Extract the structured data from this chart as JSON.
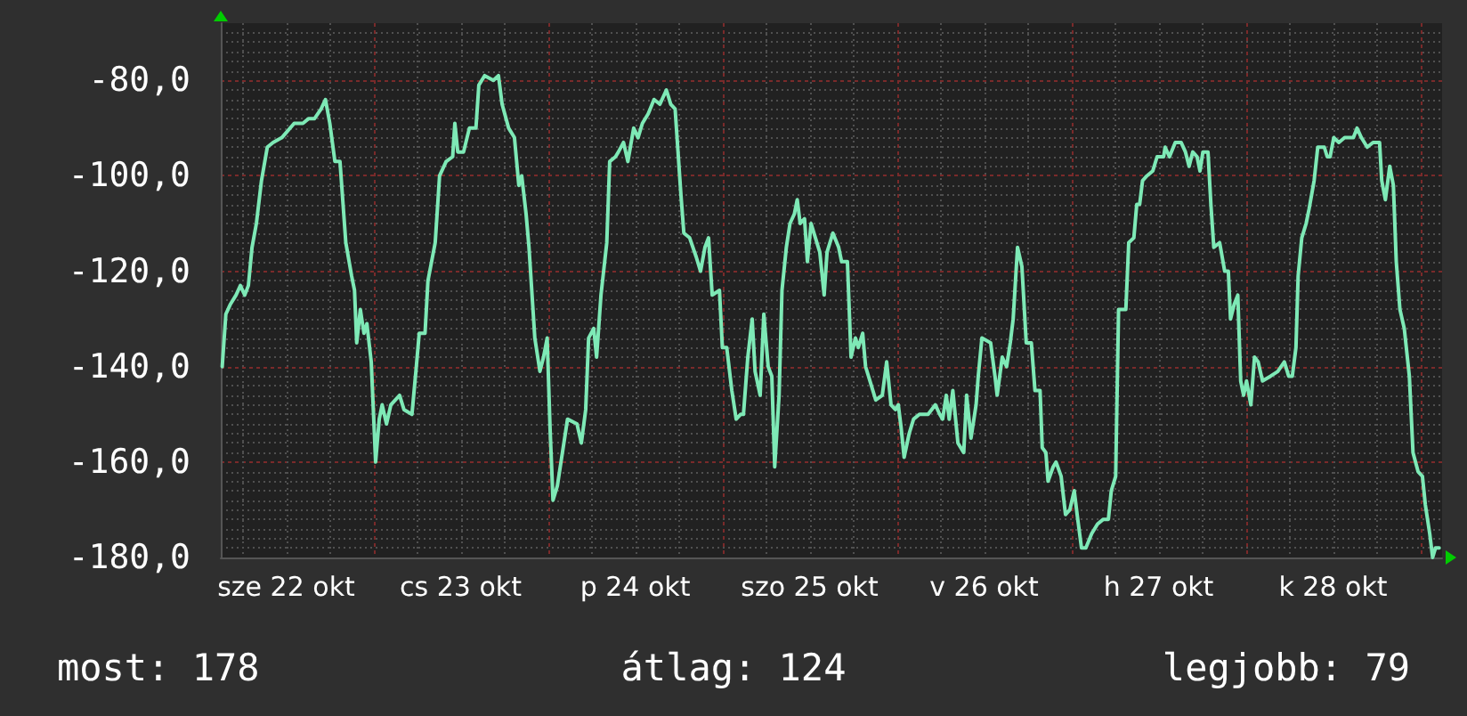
{
  "chart_data": {
    "type": "line",
    "x": [
      "--10-22T03:12",
      "--10-22T03:42",
      "--10-22T04:18",
      "--10-22T05:06",
      "--10-22T05:42",
      "--10-22T06:18",
      "--10-22T06:48",
      "--10-22T07:18",
      "--10-22T07:54",
      "--10-22T08:36",
      "--10-22T09:24",
      "--10-22T10:12",
      "--10-22T11:24",
      "--10-22T13:06",
      "--10-22T14:18",
      "--10-22T15:06",
      "--10-22T15:54",
      "--10-22T16:48",
      "--10-22T17:24",
      "--10-22T18:00",
      "--10-22T18:42",
      "--10-22T19:24",
      "--10-22T20:12",
      "--10-22T21:00",
      "--10-22T21:24",
      "--10-22T21:42",
      "--10-22T22:12",
      "--10-22T22:42",
      "--10-22T23:06",
      "--10-22T23:42",
      "--10-23T00:18",
      "--10-23T00:48",
      "--10-23T01:12",
      "--10-23T01:48",
      "--10-23T02:24",
      "--10-23T03:36",
      "--10-23T04:12",
      "--10-23T05:18",
      "--10-23T05:54",
      "--10-23T06:18",
      "--10-23T07:06",
      "--10-23T07:30",
      "--10-23T08:30",
      "--10-23T09:06",
      "--10-23T10:00",
      "--10-23T10:54",
      "--10-23T11:12",
      "--10-23T11:36",
      "--10-23T12:24",
      "--10-23T13:12",
      "--10-23T14:06",
      "--10-23T14:30",
      "--10-23T15:18",
      "--10-23T16:30",
      "--10-23T17:12",
      "--10-23T17:42",
      "--10-23T18:36",
      "--10-23T19:24",
      "--10-23T20:00",
      "--10-23T20:24",
      "--10-23T21:00",
      "--10-23T21:24",
      "--10-23T22:12",
      "--10-23T22:54",
      "--10-23T23:24",
      "--10-23T23:54",
      "--10-24T00:18",
      "--10-24T00:42",
      "--10-24T01:18",
      "--10-24T01:54",
      "--10-24T02:42",
      "--10-24T04:00",
      "--10-24T04:36",
      "--10-24T05:12",
      "--10-24T05:36",
      "--10-24T06:18",
      "--10-24T06:42",
      "--10-24T07:18",
      "--10-24T08:06",
      "--10-24T08:30",
      "--10-24T09:18",
      "--10-24T09:42",
      "--10-24T10:24",
      "--10-24T11:00",
      "--10-24T11:48",
      "--10-24T12:24",
      "--10-24T13:00",
      "--10-24T13:48",
      "--10-24T14:36",
      "--10-24T15:24",
      "--10-24T16:18",
      "--10-24T16:54",
      "--10-24T17:30",
      "--10-24T17:54",
      "--10-24T18:18",
      "--10-24T18:42",
      "--10-24T19:30",
      "--10-24T20:24",
      "--10-24T21:00",
      "--10-24T21:36",
      "--10-24T22:06",
      "--10-24T22:36",
      "--10-24T23:36",
      "--10-25T00:00",
      "--10-25T00:36",
      "--10-25T01:18",
      "--10-25T01:54",
      "--10-25T02:30",
      "--10-25T02:54",
      "--10-25T03:30",
      "--10-25T04:06",
      "--10-25T04:30",
      "--10-25T05:12",
      "--10-25T05:42",
      "--10-25T06:18",
      "--10-25T06:48",
      "--10-25T07:12",
      "--10-25T07:48",
      "--10-25T08:12",
      "--10-25T08:48",
      "--10-25T09:18",
      "--10-25T09:54",
      "--10-25T10:18",
      "--10-25T10:42",
      "--10-25T11:18",
      "--10-25T11:42",
      "--10-25T12:12",
      "--10-25T12:48",
      "--10-25T13:24",
      "--10-25T14:00",
      "--10-25T14:24",
      "--10-25T15:12",
      "--10-25T16:00",
      "--10-25T16:24",
      "--10-25T17:12",
      "--10-25T17:42",
      "--10-25T18:18",
      "--10-25T18:42",
      "--10-25T19:18",
      "--10-25T19:42",
      "--10-25T20:30",
      "--10-25T21:06",
      "--10-25T22:00",
      "--10-25T22:36",
      "--10-25T23:12",
      "--10-25T23:48",
      "--10-26T00:12",
      "--10-26T00:36",
      "--10-26T01:00",
      "--10-26T01:42",
      "--10-26T02:18",
      "--10-26T03:06",
      "--10-26T04:18",
      "--10-26T05:18",
      "--10-26T05:54",
      "--10-26T06:18",
      "--10-26T06:48",
      "--10-26T07:12",
      "--10-26T07:42",
      "--10-26T08:24",
      "--10-26T09:12",
      "--10-26T09:36",
      "--10-26T10:12",
      "--10-26T10:54",
      "--10-26T11:12",
      "--10-26T11:42",
      "--10-26T12:54",
      "--10-26T13:30",
      "--10-26T13:48",
      "--10-26T14:30",
      "--10-26T15:06",
      "--10-26T15:36",
      "--10-26T16:00",
      "--10-26T16:36",
      "--10-26T17:12",
      "--10-26T17:48",
      "--10-26T18:30",
      "--10-26T19:00",
      "--10-26T19:42",
      "--10-26T20:00",
      "--10-26T20:30",
      "--10-26T20:48",
      "--10-26T21:30",
      "--10-26T21:54",
      "--10-26T22:36",
      "--10-26T23:12",
      "--10-26T23:48",
      "--10-27T00:24",
      "--10-27T00:48",
      "--10-27T01:24",
      "--10-27T02:00",
      "--10-27T02:48",
      "--10-27T03:36",
      "--10-27T04:24",
      "--10-27T05:06",
      "--10-27T05:30",
      "--10-27T06:06",
      "--10-27T06:30",
      "--10-27T07:30",
      "--10-27T07:54",
      "--10-27T08:36",
      "--10-27T09:00",
      "--10-27T09:24",
      "--10-27T09:48",
      "--10-27T10:24",
      "--10-27T11:12",
      "--10-27T11:48",
      "--10-27T12:42",
      "--10-27T12:54",
      "--10-27T13:30",
      "--10-27T14:18",
      "--10-27T15:06",
      "--10-27T15:42",
      "--10-27T16:12",
      "--10-27T16:42",
      "--10-27T17:18",
      "--10-27T17:42",
      "--10-27T18:06",
      "--10-27T18:48",
      "--10-27T19:12",
      "--10-27T19:36",
      "--10-27T20:24",
      "--10-27T21:06",
      "--10-27T21:36",
      "--10-27T21:54",
      "--10-27T22:24",
      "--10-27T22:54",
      "--10-27T23:18",
      "--10-27T23:42",
      "--10-28T00:06",
      "--10-28T00:42",
      "--10-28T01:12",
      "--10-28T01:42",
      "--10-28T02:18",
      "--10-28T03:24",
      "--10-28T04:24",
      "--10-28T05:18",
      "--10-28T05:54",
      "--10-28T06:24",
      "--10-28T06:54",
      "--10-28T07:12",
      "--10-28T07:42",
      "--10-28T08:18",
      "--10-28T08:42",
      "--10-28T09:24",
      "--10-28T09:54",
      "--10-28T10:48",
      "--10-28T11:12",
      "--10-28T11:36",
      "--10-28T12:06",
      "--10-28T12:48",
      "--10-28T13:36",
      "--10-28T14:48",
      "--10-28T15:18",
      "--10-28T15:54",
      "--10-28T16:42",
      "--10-28T17:30",
      "--10-28T18:24",
      "--10-28T18:42",
      "--10-28T19:12",
      "--10-28T19:48",
      "--10-28T20:18",
      "--10-28T20:42",
      "--10-28T21:12",
      "--10-28T21:48",
      "--10-28T22:30",
      "--10-28T23:00",
      "--10-28T23:42",
      "--10-29T00:18",
      "--10-29T00:42",
      "--10-29T01:18",
      "--10-29T01:42",
      "--10-29T02:06",
      "--10-29T02:36"
    ],
    "series": [
      {
        "color": "#7ee9b6",
        "values": [
          -140,
          -129,
          -127,
          -125,
          -123,
          -125,
          -123,
          -115,
          -110,
          -101,
          -94,
          -93,
          -92,
          -89,
          -89,
          -88,
          -88,
          -86,
          -84,
          -89,
          -97,
          -97,
          -114,
          -121,
          -124,
          -135,
          -128,
          -133,
          -131,
          -139,
          -160,
          -151,
          -148,
          -152,
          -148,
          -146,
          -149,
          -150,
          -140,
          -133,
          -133,
          -122,
          -114,
          -100,
          -97,
          -96,
          -89,
          -95,
          -95,
          -90,
          -90,
          -81,
          -79,
          -80,
          -79,
          -85,
          -90,
          -92,
          -102,
          -100,
          -108,
          -115,
          -134,
          -141,
          -138,
          -134,
          -153,
          -168,
          -165,
          -159,
          -151,
          -152,
          -156,
          -149,
          -134,
          -132,
          -138,
          -125,
          -114,
          -97,
          -96,
          -95,
          -93,
          -97,
          -90,
          -92,
          -89,
          -87,
          -84,
          -85,
          -82,
          -85,
          -86,
          -95,
          -104,
          -112,
          -113,
          -117,
          -120,
          -115,
          -113,
          -125,
          -124,
          -136,
          -136,
          -145,
          -151,
          -150,
          -150,
          -138,
          -130,
          -141,
          -146,
          -129,
          -140,
          -142,
          -161,
          -146,
          -124,
          -115,
          -110,
          -108,
          -105,
          -110,
          -109,
          -118,
          -110,
          -113,
          -116,
          -125,
          -116,
          -112,
          -115,
          -118,
          -118,
          -138,
          -134,
          -136,
          -133,
          -140,
          -144,
          -147,
          -146,
          -139,
          -148,
          -149,
          -148,
          -153,
          -159,
          -154,
          -151,
          -150,
          -150,
          -148,
          -150,
          -151,
          -146,
          -151,
          -145,
          -156,
          -158,
          -146,
          -155,
          -148,
          -142,
          -134,
          -135,
          -142,
          -146,
          -138,
          -140,
          -135,
          -130,
          -115,
          -119,
          -135,
          -135,
          -145,
          -145,
          -157,
          -158,
          -164,
          -161,
          -160,
          -163,
          -171,
          -170,
          -166,
          -171,
          -178,
          -178,
          -175,
          -173,
          -172,
          -172,
          -166,
          -163,
          -128,
          -128,
          -114,
          -113,
          -106,
          -106,
          -101,
          -100,
          -99,
          -96,
          -96,
          -94,
          -96,
          -93,
          -93,
          -95,
          -98,
          -95,
          -96,
          -99,
          -95,
          -95,
          -106,
          -115,
          -114,
          -120,
          -120,
          -130,
          -127,
          -125,
          -143,
          -146,
          -143,
          -148,
          -138,
          -139,
          -143,
          -142,
          -141,
          -139,
          -142,
          -142,
          -136,
          -121,
          -113,
          -110,
          -107,
          -101,
          -94,
          -94,
          -96,
          -96,
          -92,
          -93,
          -92,
          -92,
          -90,
          -92,
          -94,
          -93,
          -93,
          -101,
          -105,
          -98,
          -102,
          -118,
          -128,
          -132,
          -142,
          -158,
          -162,
          -163,
          -169,
          -175,
          -180,
          -178,
          -178
        ]
      }
    ],
    "xlim": [
      "--10-22T03:00",
      "--10-29T03:00"
    ],
    "xticks": [
      {
        "value": "--10-22T06:00",
        "label": null
      },
      {
        "value": "--10-22T12:00",
        "label": "sze 22 okt"
      },
      {
        "value": "--10-22T18:00",
        "label": null
      },
      {
        "value": "--10-23T00:00",
        "label": null
      },
      {
        "value": "--10-23T06:00",
        "label": null
      },
      {
        "value": "--10-23T12:00",
        "label": "cs 23 okt"
      },
      {
        "value": "--10-23T18:00",
        "label": null
      },
      {
        "value": "--10-24T00:00",
        "label": null
      },
      {
        "value": "--10-24T06:00",
        "label": null
      },
      {
        "value": "--10-24T12:00",
        "label": "p 24 okt"
      },
      {
        "value": "--10-24T18:00",
        "label": null
      },
      {
        "value": "--10-25T00:00",
        "label": null
      },
      {
        "value": "--10-25T06:00",
        "label": null
      },
      {
        "value": "--10-25T12:00",
        "label": "szo 25 okt"
      },
      {
        "value": "--10-25T18:00",
        "label": null
      },
      {
        "value": "--10-26T00:00",
        "label": null
      },
      {
        "value": "--10-26T06:00",
        "label": null
      },
      {
        "value": "--10-26T12:00",
        "label": "v 26 okt"
      },
      {
        "value": "--10-26T18:00",
        "label": null
      },
      {
        "value": "--10-27T00:00",
        "label": null
      },
      {
        "value": "--10-27T06:00",
        "label": null
      },
      {
        "value": "--10-27T12:00",
        "label": "h 27 okt"
      },
      {
        "value": "--10-27T18:00",
        "label": null
      },
      {
        "value": "--10-28T00:00",
        "label": null
      },
      {
        "value": "--10-28T06:00",
        "label": null
      },
      {
        "value": "--10-28T12:00",
        "label": "k 28 okt"
      },
      {
        "value": "--10-28T18:00",
        "label": null
      },
      {
        "value": "--10-29T00:00",
        "label": null
      }
    ],
    "ylim": [
      -180,
      -68
    ],
    "yticks": [
      {
        "value": -180,
        "label": "-180,0"
      },
      {
        "value": -178,
        "label": null
      },
      {
        "value": -176,
        "label": null
      },
      {
        "value": -174,
        "label": null
      },
      {
        "value": -172,
        "label": null
      },
      {
        "value": -170,
        "label": null
      },
      {
        "value": -168,
        "label": null
      },
      {
        "value": -166,
        "label": null
      },
      {
        "value": -164,
        "label": null
      },
      {
        "value": -162,
        "label": null
      },
      {
        "value": -160,
        "label": "-160,0"
      },
      {
        "value": -158,
        "label": null
      },
      {
        "value": -156,
        "label": null
      },
      {
        "value": -154,
        "label": null
      },
      {
        "value": -152,
        "label": null
      },
      {
        "value": -150,
        "label": null
      },
      {
        "value": -148,
        "label": null
      },
      {
        "value": -146,
        "label": null
      },
      {
        "value": -144,
        "label": null
      },
      {
        "value": -142,
        "label": null
      },
      {
        "value": -140,
        "label": "-140,0"
      },
      {
        "value": -138,
        "label": null
      },
      {
        "value": -136,
        "label": null
      },
      {
        "value": -134,
        "label": null
      },
      {
        "value": -132,
        "label": null
      },
      {
        "value": -130,
        "label": null
      },
      {
        "value": -128,
        "label": null
      },
      {
        "value": -126,
        "label": null
      },
      {
        "value": -124,
        "label": null
      },
      {
        "value": -122,
        "label": null
      },
      {
        "value": -120,
        "label": "-120,0"
      },
      {
        "value": -118,
        "label": null
      },
      {
        "value": -116,
        "label": null
      },
      {
        "value": -114,
        "label": null
      },
      {
        "value": -112,
        "label": null
      },
      {
        "value": -110,
        "label": null
      },
      {
        "value": -108,
        "label": null
      },
      {
        "value": -106,
        "label": null
      },
      {
        "value": -104,
        "label": null
      },
      {
        "value": -102,
        "label": null
      },
      {
        "value": -100,
        "label": "-100,0"
      },
      {
        "value": -98,
        "label": null
      },
      {
        "value": -96,
        "label": null
      },
      {
        "value": -94,
        "label": null
      },
      {
        "value": -92,
        "label": null
      },
      {
        "value": -90,
        "label": null
      },
      {
        "value": -88,
        "label": null
      },
      {
        "value": -86,
        "label": null
      },
      {
        "value": -84,
        "label": null
      },
      {
        "value": -82,
        "label": null
      },
      {
        "value": -80,
        "label": "-80,0"
      },
      {
        "value": -78,
        "label": null
      },
      {
        "value": -76,
        "label": null
      },
      {
        "value": -74,
        "label": null
      },
      {
        "value": -72,
        "label": null
      },
      {
        "value": -70,
        "label": null
      }
    ],
    "grid": true,
    "marker": "none",
    "line_style": "solid",
    "annotations": [
      "most: 178",
      "átlag: 124",
      "legjobb: 79"
    ]
  }
}
